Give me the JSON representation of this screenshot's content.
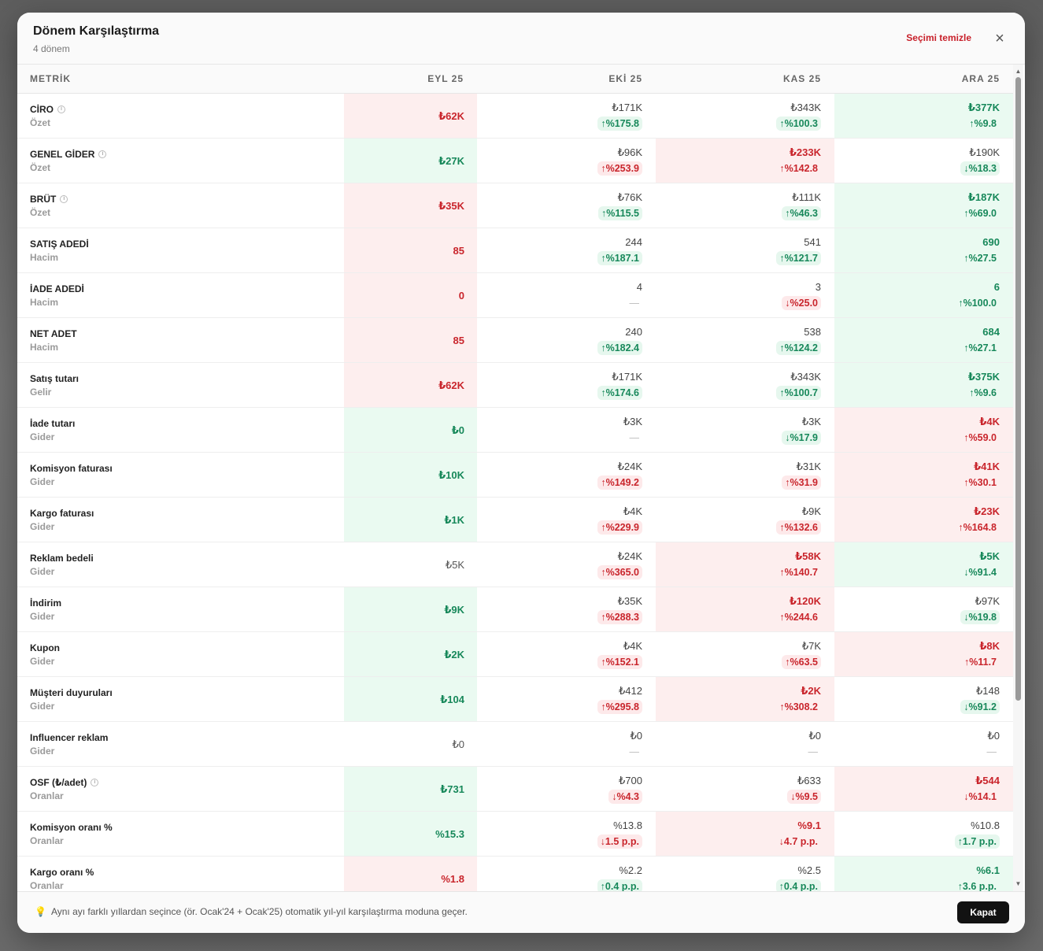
{
  "dialog": {
    "title": "Dönem Karşılaştırma",
    "subtitle": "4 dönem",
    "clear_label": "Seçimi temizle",
    "close_icon": "×"
  },
  "table": {
    "metric_header": "METRİK",
    "periods": [
      "EYL 25",
      "EKİ 25",
      "KAS 25",
      "ARA 25"
    ],
    "rows": [
      {
        "name": "CİRO",
        "info": true,
        "cat": "Özet",
        "cells": [
          {
            "v": "₺62K",
            "c": "red",
            "bg": "red"
          },
          {
            "v": "₺171K",
            "d": "↑%175.8",
            "dc": "up-green"
          },
          {
            "v": "₺343K",
            "d": "↑%100.3",
            "dc": "up-green"
          },
          {
            "v": "₺377K",
            "c": "green",
            "d": "↑%9.8",
            "dc": "up-green",
            "bg": "green"
          }
        ]
      },
      {
        "name": "GENEL GİDER",
        "info": true,
        "cat": "Özet",
        "cells": [
          {
            "v": "₺27K",
            "c": "green",
            "bg": "green"
          },
          {
            "v": "₺96K",
            "d": "↑%253.9",
            "dc": "up-red"
          },
          {
            "v": "₺233K",
            "c": "red",
            "d": "↑%142.8",
            "dc": "up-red",
            "bg": "red"
          },
          {
            "v": "₺190K",
            "d": "↓%18.3",
            "dc": "down-green"
          }
        ]
      },
      {
        "name": "BRÜT",
        "info": true,
        "cat": "Özet",
        "cells": [
          {
            "v": "₺35K",
            "c": "red",
            "bg": "red"
          },
          {
            "v": "₺76K",
            "d": "↑%115.5",
            "dc": "up-green"
          },
          {
            "v": "₺111K",
            "d": "↑%46.3",
            "dc": "up-green"
          },
          {
            "v": "₺187K",
            "c": "green",
            "d": "↑%69.0",
            "dc": "up-green",
            "bg": "green"
          }
        ]
      },
      {
        "name": "SATIŞ ADEDİ",
        "info": false,
        "cat": "Hacim",
        "cells": [
          {
            "v": "85",
            "c": "red",
            "bg": "red"
          },
          {
            "v": "244",
            "d": "↑%187.1",
            "dc": "up-green"
          },
          {
            "v": "541",
            "d": "↑%121.7",
            "dc": "up-green"
          },
          {
            "v": "690",
            "c": "green",
            "d": "↑%27.5",
            "dc": "up-green",
            "bg": "green"
          }
        ]
      },
      {
        "name": "İADE ADEDİ",
        "info": false,
        "cat": "Hacim",
        "cells": [
          {
            "v": "0",
            "c": "red",
            "bg": "red"
          },
          {
            "v": "4",
            "d": "—",
            "dc": "none"
          },
          {
            "v": "3",
            "d": "↓%25.0",
            "dc": "down-red"
          },
          {
            "v": "6",
            "c": "green",
            "d": "↑%100.0",
            "dc": "up-green",
            "bg": "green"
          }
        ]
      },
      {
        "name": "NET ADET",
        "info": false,
        "cat": "Hacim",
        "cells": [
          {
            "v": "85",
            "c": "red",
            "bg": "red"
          },
          {
            "v": "240",
            "d": "↑%182.4",
            "dc": "up-green"
          },
          {
            "v": "538",
            "d": "↑%124.2",
            "dc": "up-green"
          },
          {
            "v": "684",
            "c": "green",
            "d": "↑%27.1",
            "dc": "up-green",
            "bg": "green"
          }
        ]
      },
      {
        "name": "Satış tutarı",
        "info": false,
        "cat": "Gelir",
        "cells": [
          {
            "v": "₺62K",
            "c": "red",
            "bg": "red"
          },
          {
            "v": "₺171K",
            "d": "↑%174.6",
            "dc": "up-green"
          },
          {
            "v": "₺343K",
            "d": "↑%100.7",
            "dc": "up-green"
          },
          {
            "v": "₺375K",
            "c": "green",
            "d": "↑%9.6",
            "dc": "up-green",
            "bg": "green"
          }
        ]
      },
      {
        "name": "İade tutarı",
        "info": false,
        "cat": "Gider",
        "cells": [
          {
            "v": "₺0",
            "c": "green",
            "bg": "green"
          },
          {
            "v": "₺3K",
            "d": "—",
            "dc": "none"
          },
          {
            "v": "₺3K",
            "d": "↓%17.9",
            "dc": "down-green"
          },
          {
            "v": "₺4K",
            "c": "red",
            "d": "↑%59.0",
            "dc": "up-red",
            "bg": "red"
          }
        ]
      },
      {
        "name": "Komisyon faturası",
        "info": false,
        "cat": "Gider",
        "cells": [
          {
            "v": "₺10K",
            "c": "green",
            "bg": "green"
          },
          {
            "v": "₺24K",
            "d": "↑%149.2",
            "dc": "up-red"
          },
          {
            "v": "₺31K",
            "d": "↑%31.9",
            "dc": "up-red"
          },
          {
            "v": "₺41K",
            "c": "red",
            "d": "↑%30.1",
            "dc": "up-red",
            "bg": "red"
          }
        ]
      },
      {
        "name": "Kargo faturası",
        "info": false,
        "cat": "Gider",
        "cells": [
          {
            "v": "₺1K",
            "c": "green",
            "bg": "green"
          },
          {
            "v": "₺4K",
            "d": "↑%229.9",
            "dc": "up-red"
          },
          {
            "v": "₺9K",
            "d": "↑%132.6",
            "dc": "up-red"
          },
          {
            "v": "₺23K",
            "c": "red",
            "d": "↑%164.8",
            "dc": "up-red",
            "bg": "red"
          }
        ]
      },
      {
        "name": "Reklam bedeli",
        "info": false,
        "cat": "Gider",
        "cells": [
          {
            "v": "₺5K",
            "c": "neutral"
          },
          {
            "v": "₺24K",
            "d": "↑%365.0",
            "dc": "up-red"
          },
          {
            "v": "₺58K",
            "c": "red",
            "d": "↑%140.7",
            "dc": "up-red",
            "bg": "red"
          },
          {
            "v": "₺5K",
            "c": "green",
            "d": "↓%91.4",
            "dc": "down-green",
            "bg": "green"
          }
        ]
      },
      {
        "name": "İndirim",
        "info": false,
        "cat": "Gider",
        "cells": [
          {
            "v": "₺9K",
            "c": "green",
            "bg": "green"
          },
          {
            "v": "₺35K",
            "d": "↑%288.3",
            "dc": "up-red"
          },
          {
            "v": "₺120K",
            "c": "red",
            "d": "↑%244.6",
            "dc": "up-red",
            "bg": "red"
          },
          {
            "v": "₺97K",
            "d": "↓%19.8",
            "dc": "down-green"
          }
        ]
      },
      {
        "name": "Kupon",
        "info": false,
        "cat": "Gider",
        "cells": [
          {
            "v": "₺2K",
            "c": "green",
            "bg": "green"
          },
          {
            "v": "₺4K",
            "d": "↑%152.1",
            "dc": "up-red"
          },
          {
            "v": "₺7K",
            "d": "↑%63.5",
            "dc": "up-red"
          },
          {
            "v": "₺8K",
            "c": "red",
            "d": "↑%11.7",
            "dc": "up-red",
            "bg": "red"
          }
        ]
      },
      {
        "name": "Müşteri duyuruları",
        "info": false,
        "cat": "Gider",
        "cells": [
          {
            "v": "₺104",
            "c": "green",
            "bg": "green"
          },
          {
            "v": "₺412",
            "d": "↑%295.8",
            "dc": "up-red"
          },
          {
            "v": "₺2K",
            "c": "red",
            "d": "↑%308.2",
            "dc": "up-red",
            "bg": "red"
          },
          {
            "v": "₺148",
            "d": "↓%91.2",
            "dc": "down-green"
          }
        ]
      },
      {
        "name": "Influencer reklam",
        "info": false,
        "cat": "Gider",
        "cells": [
          {
            "v": "₺0",
            "c": "neutral"
          },
          {
            "v": "₺0",
            "d": "—",
            "dc": "none"
          },
          {
            "v": "₺0",
            "d": "—",
            "dc": "none"
          },
          {
            "v": "₺0",
            "d": "—",
            "dc": "none"
          }
        ]
      },
      {
        "name": "OSF (₺/adet)",
        "info": true,
        "cat": "Oranlar",
        "cells": [
          {
            "v": "₺731",
            "c": "green",
            "bg": "green"
          },
          {
            "v": "₺700",
            "d": "↓%4.3",
            "dc": "down-red"
          },
          {
            "v": "₺633",
            "d": "↓%9.5",
            "dc": "down-red"
          },
          {
            "v": "₺544",
            "c": "red",
            "d": "↓%14.1",
            "dc": "down-red",
            "bg": "red"
          }
        ]
      },
      {
        "name": "Komisyon oranı %",
        "info": false,
        "cat": "Oranlar",
        "cells": [
          {
            "v": "%15.3",
            "c": "green",
            "bg": "green"
          },
          {
            "v": "%13.8",
            "d": "↓1.5 p.p.",
            "dc": "down-red"
          },
          {
            "v": "%9.1",
            "c": "red",
            "d": "↓4.7 p.p.",
            "dc": "down-red",
            "bg": "red"
          },
          {
            "v": "%10.8",
            "d": "↑1.7 p.p.",
            "dc": "up-green"
          }
        ]
      },
      {
        "name": "Kargo oranı %",
        "info": false,
        "cat": "Oranlar",
        "cells": [
          {
            "v": "%1.8",
            "c": "red",
            "bg": "red"
          },
          {
            "v": "%2.2",
            "d": "↑0.4 p.p.",
            "dc": "up-green"
          },
          {
            "v": "%2.5",
            "d": "↑0.4 p.p.",
            "dc": "up-green"
          },
          {
            "v": "%6.1",
            "c": "green",
            "d": "↑3.6 p.p.",
            "dc": "up-green",
            "bg": "green"
          }
        ]
      }
    ]
  },
  "footer": {
    "hint_icon": "lightbulb-icon",
    "hint": "Aynı ayı farklı yıllardan seçince (ör. Ocak'24 + Ocak'25) otomatik yıl-yıl karşılaştırma moduna geçer.",
    "close_label": "Kapat"
  }
}
